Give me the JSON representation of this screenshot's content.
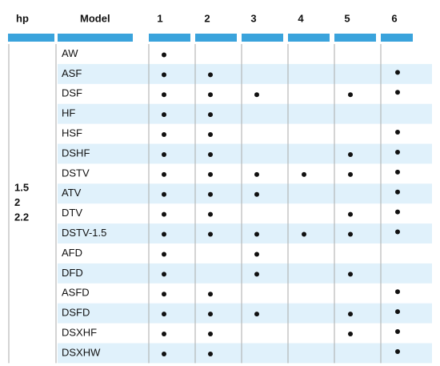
{
  "table": {
    "headers": [
      "hp",
      "Model",
      "1",
      "2",
      "3",
      "4",
      "5",
      "6"
    ],
    "hp": [
      "1.5",
      "2",
      "2.2"
    ],
    "rows": [
      {
        "model": "AW",
        "dots": [
          true,
          false,
          false,
          false,
          false,
          false
        ]
      },
      {
        "model": "ASF",
        "dots": [
          true,
          true,
          false,
          false,
          false,
          true
        ]
      },
      {
        "model": "DSF",
        "dots": [
          true,
          true,
          true,
          false,
          true,
          true
        ]
      },
      {
        "model": "HF",
        "dots": [
          true,
          true,
          false,
          false,
          false,
          false
        ]
      },
      {
        "model": "HSF",
        "dots": [
          true,
          true,
          false,
          false,
          false,
          true
        ]
      },
      {
        "model": "DSHF",
        "dots": [
          true,
          true,
          false,
          false,
          true,
          true
        ]
      },
      {
        "model": "DSTV",
        "dots": [
          true,
          true,
          true,
          true,
          true,
          true
        ]
      },
      {
        "model": "ATV",
        "dots": [
          true,
          true,
          true,
          false,
          false,
          true
        ]
      },
      {
        "model": "DTV",
        "dots": [
          true,
          true,
          false,
          false,
          true,
          true
        ]
      },
      {
        "model": "DSTV-1.5",
        "dots": [
          true,
          true,
          true,
          true,
          true,
          true
        ]
      },
      {
        "model": "AFD",
        "dots": [
          true,
          false,
          true,
          false,
          false,
          false
        ]
      },
      {
        "model": "DFD",
        "dots": [
          true,
          false,
          true,
          false,
          true,
          false
        ]
      },
      {
        "model": "ASFD",
        "dots": [
          true,
          true,
          false,
          false,
          false,
          true
        ]
      },
      {
        "model": "DSFD",
        "dots": [
          true,
          true,
          true,
          false,
          true,
          true
        ]
      },
      {
        "model": "DSXHF",
        "dots": [
          true,
          true,
          false,
          false,
          true,
          true
        ]
      },
      {
        "model": "DSXHW",
        "dots": [
          true,
          true,
          false,
          false,
          false,
          true
        ]
      }
    ]
  }
}
